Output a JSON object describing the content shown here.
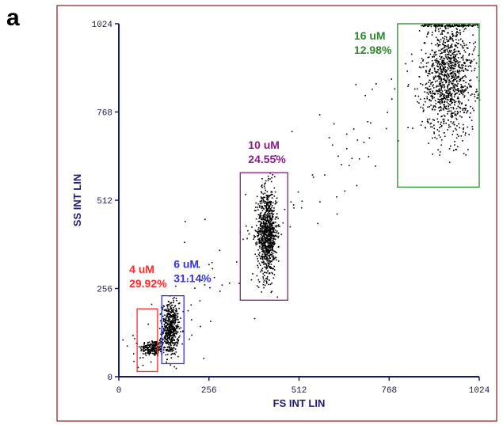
{
  "panel_label": "a",
  "colors": {
    "frame": "#8b1a1a",
    "axis": "#1a1a5e",
    "axis_title": "#1a1a7a",
    "dots": "#000000"
  },
  "chart_data": {
    "type": "scatter",
    "title": "",
    "xlabel": "FS INT LIN",
    "ylabel": "SS INT LIN",
    "xlim": [
      0,
      1024
    ],
    "ylim": [
      0,
      1024
    ],
    "x_ticks": [
      0,
      256,
      512,
      768,
      1024
    ],
    "y_ticks": [
      0,
      256,
      512,
      768,
      1024
    ],
    "x_tick_labels": [
      "0",
      "256",
      "512",
      "768",
      "1024"
    ],
    "y_tick_labels": [
      "0",
      "256",
      "512",
      "768",
      "1024"
    ],
    "grid": false,
    "gates": [
      {
        "name": "4 uM",
        "percent": "29.92%",
        "color": "#ff2a2a",
        "x_range": [
          52,
          110
        ],
        "y_range": [
          15,
          197
        ]
      },
      {
        "name": "6 uM",
        "percent": "31.14%",
        "color": "#3333dd",
        "x_range": [
          122,
          185
        ],
        "y_range": [
          38,
          235
        ]
      },
      {
        "name": "10 uM",
        "percent": "24.55%",
        "color": "#8b1a8b",
        "x_range": [
          345,
          480
        ],
        "y_range": [
          222,
          592
        ]
      },
      {
        "name": "16 uM",
        "percent": "12.98%",
        "color": "#2a8a2a",
        "x_range": [
          792,
          1024
        ],
        "y_range": [
          550,
          1024
        ]
      }
    ],
    "populations": [
      {
        "name": "4 uM",
        "x_center": 95,
        "y_center": 85,
        "x_spread": 18,
        "y_spread": 12,
        "count": 220
      },
      {
        "name": "6 uM",
        "x_center": 145,
        "y_center": 140,
        "x_spread": 12,
        "y_spread": 38,
        "count": 520
      },
      {
        "name": "10 uM",
        "x_center": 420,
        "y_center": 420,
        "x_spread": 14,
        "y_spread": 65,
        "count": 900
      },
      {
        "name": "16 uM",
        "x_center": 935,
        "y_center": 870,
        "x_spread": 38,
        "y_spread": 85,
        "count": 1100
      }
    ]
  }
}
